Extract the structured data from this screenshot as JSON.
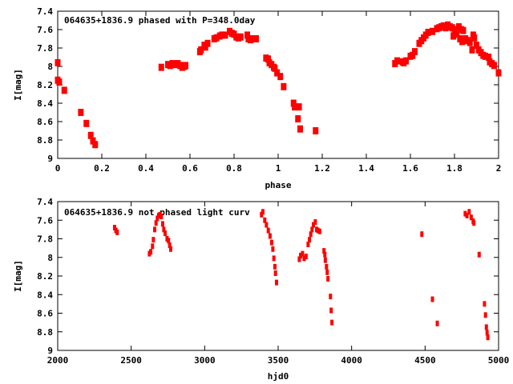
{
  "chart_data": [
    {
      "type": "scatter",
      "title": "064635+1836.9 phased with P=348.0day",
      "xlabel": "phase",
      "ylabel": "I[mag]",
      "xlim": [
        0,
        2
      ],
      "ylim": [
        9,
        7.4
      ],
      "y_inverted": true,
      "xticks": [
        "0",
        "0.2",
        "0.4",
        "0.6",
        "0.8",
        "1",
        "1.2",
        "1.4",
        "1.6",
        "1.8",
        "2"
      ],
      "yticks": [
        "7.4",
        "7.6",
        "7.8",
        "8",
        "8.2",
        "8.4",
        "8.6",
        "8.8",
        "9"
      ],
      "grid": false,
      "marker_color": "#ff0000",
      "points": [
        [
          0.0,
          7.96
        ],
        [
          0.0,
          8.15
        ],
        [
          0.007,
          8.17
        ],
        [
          0.03,
          8.26
        ],
        [
          0.105,
          8.5
        ],
        [
          0.13,
          8.62
        ],
        [
          0.15,
          8.75
        ],
        [
          0.16,
          8.81
        ],
        [
          0.17,
          8.85
        ],
        [
          0.47,
          8.01
        ],
        [
          0.5,
          7.98
        ],
        [
          0.51,
          7.99
        ],
        [
          0.52,
          7.97
        ],
        [
          0.53,
          7.98
        ],
        [
          0.545,
          7.97
        ],
        [
          0.555,
          7.99
        ],
        [
          0.565,
          8.01
        ],
        [
          0.575,
          8.0
        ],
        [
          0.58,
          7.99
        ],
        [
          0.645,
          7.84
        ],
        [
          0.65,
          7.82
        ],
        [
          0.665,
          7.77
        ],
        [
          0.67,
          7.79
        ],
        [
          0.68,
          7.75
        ],
        [
          0.71,
          7.7
        ],
        [
          0.72,
          7.69
        ],
        [
          0.735,
          7.67
        ],
        [
          0.745,
          7.66
        ],
        [
          0.76,
          7.66
        ],
        [
          0.78,
          7.62
        ],
        [
          0.79,
          7.64
        ],
        [
          0.8,
          7.65
        ],
        [
          0.81,
          7.68
        ],
        [
          0.82,
          7.69
        ],
        [
          0.83,
          7.68
        ],
        [
          0.86,
          7.66
        ],
        [
          0.865,
          7.7
        ],
        [
          0.875,
          7.71
        ],
        [
          0.885,
          7.7
        ],
        [
          0.9,
          7.7
        ],
        [
          0.945,
          7.91
        ],
        [
          0.955,
          7.92
        ],
        [
          0.96,
          7.96
        ],
        [
          0.97,
          7.98
        ],
        [
          0.98,
          8.01
        ],
        [
          0.985,
          8.02
        ],
        [
          0.995,
          8.07
        ],
        [
          1.01,
          8.11
        ],
        [
          1.025,
          8.22
        ],
        [
          1.07,
          8.4
        ],
        [
          1.075,
          8.44
        ],
        [
          1.095,
          8.44
        ],
        [
          1.09,
          8.57
        ],
        [
          1.1,
          8.68
        ],
        [
          1.17,
          8.7
        ],
        [
          1.53,
          7.97
        ],
        [
          1.54,
          7.94
        ],
        [
          1.565,
          7.95
        ],
        [
          1.57,
          7.96
        ],
        [
          1.58,
          7.94
        ],
        [
          1.6,
          7.89
        ],
        [
          1.61,
          7.88
        ],
        [
          1.62,
          7.84
        ],
        [
          1.64,
          7.75
        ],
        [
          1.65,
          7.72
        ],
        [
          1.66,
          7.69
        ],
        [
          1.67,
          7.66
        ],
        [
          1.68,
          7.63
        ],
        [
          1.7,
          7.62
        ],
        [
          1.72,
          7.59
        ],
        [
          1.73,
          7.58
        ],
        [
          1.74,
          7.57
        ],
        [
          1.75,
          7.56
        ],
        [
          1.76,
          7.58
        ],
        [
          1.77,
          7.55
        ],
        [
          1.78,
          7.57
        ],
        [
          1.79,
          7.58
        ],
        [
          1.8,
          7.6
        ],
        [
          1.795,
          7.67
        ],
        [
          1.81,
          7.65
        ],
        [
          1.82,
          7.57
        ],
        [
          1.83,
          7.6
        ],
        [
          1.84,
          7.61
        ],
        [
          1.825,
          7.7
        ],
        [
          1.835,
          7.73
        ],
        [
          1.85,
          7.7
        ],
        [
          1.86,
          7.72
        ],
        [
          1.87,
          7.74
        ],
        [
          1.885,
          7.66
        ],
        [
          1.89,
          7.69
        ],
        [
          1.88,
          7.82
        ],
        [
          1.9,
          7.77
        ],
        [
          1.91,
          7.82
        ],
        [
          1.92,
          7.85
        ],
        [
          1.93,
          7.88
        ],
        [
          1.94,
          7.89
        ],
        [
          1.955,
          7.9
        ],
        [
          1.96,
          7.95
        ],
        [
          1.97,
          7.97
        ],
        [
          1.98,
          7.99
        ],
        [
          2.0,
          8.07
        ]
      ]
    },
    {
      "type": "scatter",
      "title": "064635+1836.9 not phased light curv",
      "xlabel": "hjd0",
      "ylabel": "I[mag]",
      "xlim": [
        2000,
        5000
      ],
      "ylim": [
        9,
        7.4
      ],
      "y_inverted": true,
      "xticks": [
        "2000",
        "2500",
        "3000",
        "3500",
        "4000",
        "4500",
        "5000"
      ],
      "yticks": [
        "7.4",
        "7.6",
        "7.8",
        "8",
        "8.2",
        "8.4",
        "8.6",
        "8.8",
        "9"
      ],
      "grid": false,
      "marker_color": "#ff0000",
      "points": [
        [
          2387,
          7.68
        ],
        [
          2396,
          7.71
        ],
        [
          2405,
          7.73
        ],
        [
          2624,
          7.96
        ],
        [
          2633,
          7.94
        ],
        [
          2645,
          7.88
        ],
        [
          2651,
          7.81
        ],
        [
          2660,
          7.7
        ],
        [
          2669,
          7.63
        ],
        [
          2678,
          7.58
        ],
        [
          2687,
          7.55
        ],
        [
          2696,
          7.54
        ],
        [
          2705,
          7.56
        ],
        [
          2714,
          7.64
        ],
        [
          2722,
          7.7
        ],
        [
          2731,
          7.74
        ],
        [
          2744,
          7.8
        ],
        [
          2754,
          7.82
        ],
        [
          2762,
          7.87
        ],
        [
          2769,
          7.91
        ],
        [
          3387,
          7.54
        ],
        [
          3396,
          7.51
        ],
        [
          3409,
          7.6
        ],
        [
          3420,
          7.65
        ],
        [
          3433,
          7.71
        ],
        [
          3445,
          7.77
        ],
        [
          3456,
          7.84
        ],
        [
          3464,
          7.91
        ],
        [
          3471,
          8.01
        ],
        [
          3478,
          8.1
        ],
        [
          3482,
          8.17
        ],
        [
          3489,
          8.27
        ],
        [
          3644,
          8.02
        ],
        [
          3653,
          7.98
        ],
        [
          3666,
          7.96
        ],
        [
          3677,
          8.01
        ],
        [
          3690,
          7.99
        ],
        [
          3704,
          7.86
        ],
        [
          3713,
          7.81
        ],
        [
          3722,
          7.75
        ],
        [
          3731,
          7.7
        ],
        [
          3740,
          7.65
        ],
        [
          3753,
          7.62
        ],
        [
          3762,
          7.7
        ],
        [
          3771,
          7.71
        ],
        [
          3783,
          7.72
        ],
        [
          3812,
          7.93
        ],
        [
          3818,
          7.97
        ],
        [
          3821,
          8.03
        ],
        [
          3829,
          8.1
        ],
        [
          3834,
          8.16
        ],
        [
          3839,
          8.23
        ],
        [
          3856,
          8.42
        ],
        [
          3861,
          8.57
        ],
        [
          3866,
          8.7
        ],
        [
          4478,
          7.75
        ],
        [
          4550,
          8.45
        ],
        [
          4583,
          8.71
        ],
        [
          4773,
          7.53
        ],
        [
          4785,
          7.55
        ],
        [
          4800,
          7.51
        ],
        [
          4814,
          7.57
        ],
        [
          4827,
          7.61
        ],
        [
          4832,
          7.63
        ],
        [
          4868,
          7.97
        ],
        [
          4904,
          8.5
        ],
        [
          4911,
          8.62
        ],
        [
          4917,
          8.75
        ],
        [
          4922,
          8.81
        ],
        [
          4927,
          8.86
        ]
      ]
    }
  ]
}
